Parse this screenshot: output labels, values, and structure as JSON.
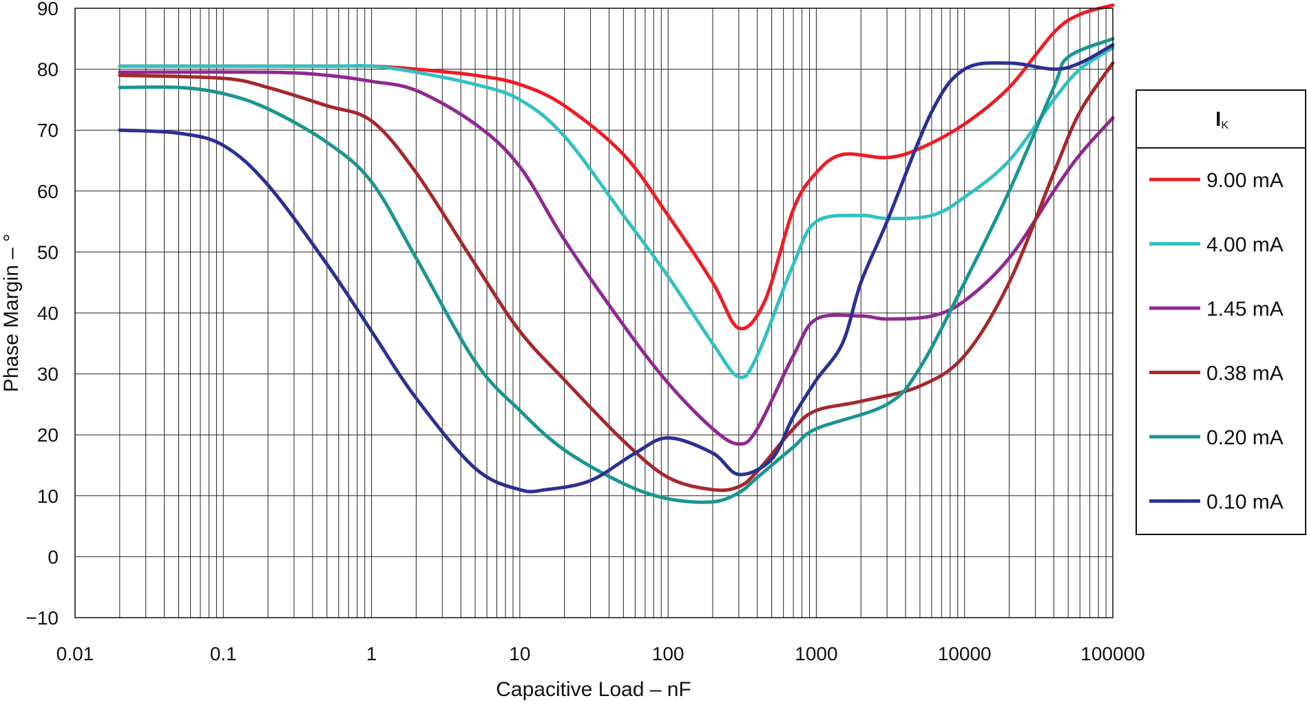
{
  "chart_data": {
    "type": "line",
    "title": "",
    "xlabel": "Capacitive Load – nF",
    "ylabel": "Phase Margin – °",
    "xscale": "log",
    "xlim": [
      0.01,
      100000
    ],
    "ylim": [
      -10,
      90
    ],
    "xticks": [
      "0.01",
      "0.1",
      "1",
      "10",
      "100",
      "1000",
      "10000",
      "100000"
    ],
    "yticks": [
      "90",
      "80",
      "70",
      "60",
      "50",
      "40",
      "30",
      "20",
      "10",
      "0",
      "−10"
    ],
    "grid": true,
    "legend": {
      "title_main": "I",
      "title_sub": "K",
      "placement": "right"
    },
    "series": [
      {
        "name": "9.00 mA",
        "color": "#ee1c25",
        "x": [
          0.02,
          0.5,
          1,
          2,
          5,
          10,
          20,
          50,
          100,
          200,
          300,
          450,
          700,
          1000,
          1500,
          3000,
          5000,
          10000,
          20000,
          40000,
          60000,
          100000
        ],
        "y": [
          80.5,
          80.5,
          80.5,
          80,
          79,
          77.5,
          74,
          66,
          56,
          45,
          37.5,
          42,
          57,
          63,
          66,
          65.5,
          67,
          71,
          77,
          86,
          89,
          90.5
        ]
      },
      {
        "name": "4.00 mA",
        "color": "#33c0c0",
        "x": [
          0.02,
          0.5,
          1,
          2,
          5,
          10,
          20,
          50,
          100,
          200,
          300,
          400,
          700,
          1000,
          2000,
          3000,
          6000,
          10000,
          20000,
          40000,
          60000,
          100000
        ],
        "y": [
          80.5,
          80.5,
          80.5,
          79.5,
          77.5,
          75,
          69,
          56,
          46,
          35,
          29.5,
          33,
          48,
          55,
          56,
          55.5,
          56,
          59,
          65,
          75,
          80,
          83.5
        ]
      },
      {
        "name": "1.45 mA",
        "color": "#8e2a90",
        "x": [
          0.02,
          0.2,
          0.5,
          1,
          2,
          5,
          10,
          20,
          50,
          100,
          200,
          300,
          400,
          700,
          1000,
          2000,
          3000,
          6000,
          10000,
          20000,
          40000,
          60000,
          100000
        ],
        "y": [
          79.5,
          79.5,
          79,
          78,
          76.5,
          71,
          64,
          52,
          38,
          28.5,
          21,
          18.5,
          21,
          33,
          39,
          39.5,
          39,
          39.5,
          42,
          49,
          60,
          66,
          72
        ]
      },
      {
        "name": "0.38 mA",
        "color": "#a6282c",
        "x": [
          0.02,
          0.1,
          0.2,
          0.5,
          1,
          2,
          5,
          10,
          20,
          50,
          100,
          200,
          300,
          400,
          700,
          1000,
          2000,
          5000,
          10000,
          20000,
          40000,
          60000,
          100000
        ],
        "y": [
          79,
          78.5,
          77,
          74,
          71.5,
          63,
          48,
          37,
          29,
          19,
          13,
          11,
          11.5,
          14,
          21,
          24,
          25.5,
          28,
          33,
          45,
          63,
          73,
          81
        ]
      },
      {
        "name": "0.20 mA",
        "color": "#1a9690",
        "x": [
          0.02,
          0.05,
          0.1,
          0.2,
          0.5,
          1,
          2,
          5,
          10,
          20,
          50,
          100,
          200,
          300,
          400,
          700,
          1000,
          3000,
          5000,
          10000,
          20000,
          40000,
          50000,
          100000
        ],
        "y": [
          77,
          77,
          76,
          73.5,
          68,
          61.5,
          49,
          32,
          24,
          17.5,
          12,
          9.5,
          9,
          10.5,
          13,
          18,
          21,
          25,
          31,
          45,
          60,
          77,
          82,
          85
        ]
      },
      {
        "name": "0.10 mA",
        "color": "#2b3192",
        "x": [
          0.02,
          0.05,
          0.1,
          0.2,
          0.5,
          1,
          2,
          5,
          10,
          15,
          30,
          60,
          100,
          200,
          300,
          500,
          700,
          1000,
          1500,
          2000,
          3000,
          6000,
          10000,
          20000,
          40000,
          60000,
          100000
        ],
        "y": [
          70,
          69.5,
          67.5,
          61,
          48,
          37,
          26,
          14.5,
          11,
          11,
          12.5,
          17,
          19.5,
          17,
          13.5,
          16,
          23,
          29,
          35,
          45,
          55,
          73,
          80,
          81,
          80,
          81,
          84
        ]
      }
    ]
  }
}
